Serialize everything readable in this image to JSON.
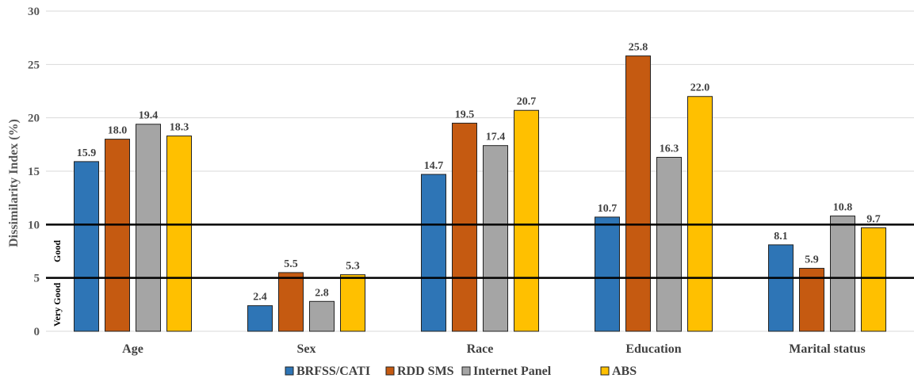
{
  "chart_data": {
    "type": "bar",
    "categories": [
      "Age",
      "Sex",
      "Race",
      "Education",
      "Marital status"
    ],
    "series": [
      {
        "name": "BRFSS/CATI",
        "color": "#2e75b6",
        "values": [
          15.9,
          2.4,
          14.7,
          10.7,
          8.1
        ]
      },
      {
        "name": "RDD SMS",
        "color": "#c55a11",
        "values": [
          18.0,
          5.5,
          19.5,
          25.8,
          5.9
        ]
      },
      {
        "name": "Internet Panel",
        "color": "#a5a5a5",
        "values": [
          19.4,
          2.8,
          17.4,
          16.3,
          10.8
        ]
      },
      {
        "name": "ABS",
        "color": "#ffc000",
        "values": [
          18.3,
          5.3,
          20.7,
          22.0,
          9.7
        ]
      }
    ],
    "data_labels": [
      [
        "15.9",
        "2.4",
        "14.7",
        "10.7",
        "8.1"
      ],
      [
        "18.0",
        "5.5",
        "19.5",
        "25.8",
        "5.9"
      ],
      [
        "19.4",
        "2.8",
        "17.4",
        "16.3",
        "10.8"
      ],
      [
        "18.3",
        "5.3",
        "20.7",
        "22.0",
        "9.7"
      ]
    ],
    "ylabel": "Dissimilarity Index (%)",
    "ylim": [
      0,
      30
    ],
    "yticks": [
      0,
      5,
      10,
      15,
      20,
      25,
      30
    ],
    "grid": true,
    "legend_position": "bottom",
    "reference_lines": [
      5,
      10
    ],
    "bands": [
      {
        "label": "Very Good",
        "from": 0,
        "to": 5
      },
      {
        "label": "Good",
        "from": 5,
        "to": 10
      }
    ]
  }
}
